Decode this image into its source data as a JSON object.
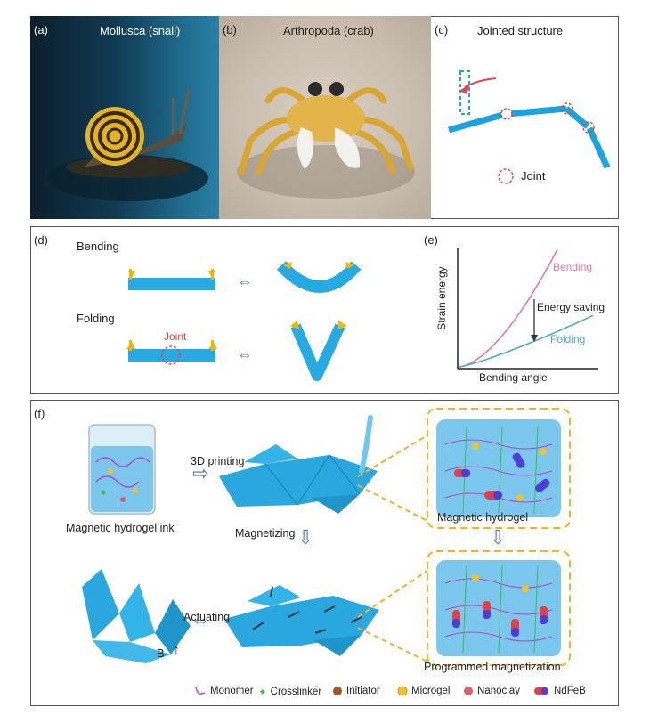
{
  "panel_a": {
    "label": "(a)",
    "title": "Mollusca (snail)"
  },
  "panel_b": {
    "label": "(b)",
    "title": "Arthropoda (crab)"
  },
  "panel_c": {
    "label": "(c)",
    "title": "Jointed structure",
    "joint_legend": "Joint"
  },
  "panel_d": {
    "label": "(d)",
    "bending": "Bending",
    "folding": "Folding",
    "joint": "Joint"
  },
  "panel_e": {
    "label": "(e)",
    "chart_data": {
      "type": "line",
      "xlabel": "Bending angle",
      "ylabel": "Strain energy",
      "series": [
        {
          "name": "Bending",
          "color": "#e377a6"
        },
        {
          "name": "Folding",
          "color": "#4aa9d6"
        }
      ],
      "annotation": "Energy saving"
    }
  },
  "panel_f": {
    "label": "(f)",
    "ink": "Magnetic hydrogel ink",
    "printing": "3D printing",
    "magnetizing": "Magnetizing",
    "hydrogel": "Magnetic hydrogel",
    "actuating": "Actuating",
    "field": "B",
    "programmed": "Programmed magnetization",
    "legend": [
      {
        "name": "Monomer",
        "color": "#b845c9"
      },
      {
        "name": "Crosslinker",
        "color": "#3cbf4a"
      },
      {
        "name": "Initiator",
        "color": "#9b5a22"
      },
      {
        "name": "Microgel",
        "color": "#f2c12e"
      },
      {
        "name": "Nanoclay",
        "color": "#d9606e"
      },
      {
        "name": "NdFeB",
        "color": "#4b3fd6"
      }
    ]
  }
}
